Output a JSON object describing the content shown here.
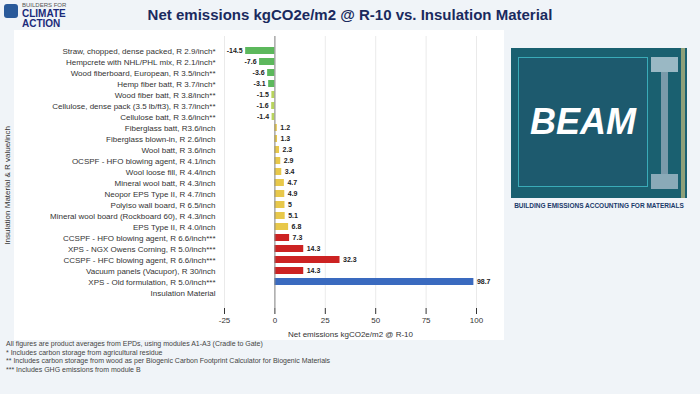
{
  "chart_data": {
    "type": "bar",
    "orientation": "horizontal",
    "title": "Net emissions kgCO2e/m2 @ R-10 vs. Insulation Material",
    "xlabel": "Net emissions kgCO2e/m2 @ R-10",
    "ylabel": "Insulation Material & R value/inch",
    "categories": [
      "Straw, chopped, dense packed, R 2.9/inch*",
      "Hempcrete with NHL/PHL mix, R 2.1/inch*",
      "Wood fiberboard, European, R 3.5/inch**",
      "Hemp fiber batt, R 3.7/inch*",
      "Wood fiber batt, R 3.8/inch**",
      "Cellulose, dense pack (3.5 lb/ft3), R 3.7/inch**",
      "Cellulose batt, R 3.6/inch**",
      "Fiberglass batt, R3.6/inch",
      "Fiberglass blown-in, R 2.6/inch",
      "Wool batt, R 3.6/inch",
      "OCSPF - HFO blowing agent, R 4.1/inch",
      "Wool loose fill, R 4.4/inch",
      "Mineral wool batt, R 4.3/inch",
      "Neopor EPS Type II, R 4.7/inch",
      "Polyiso wall board, R 6.5/inch",
      "Mineral wool board (Rockboard 60), R 4.3/inch",
      "EPS Type II, R 4.0/inch",
      "CCSPF - HFO blowing agent, R 6.6/inch***",
      "XPS - NGX Owens Corning, R 5.0/inch***",
      "CCSPF - HFC blowing agent, R 6.6/inch***",
      "Vacuum panels (Vacupor), R 30/inch",
      "XPS - Old formulation, R 5.0/inch***",
      "Insulation Material"
    ],
    "values": [
      -14.5,
      -7.6,
      -3.6,
      -3.1,
      -1.5,
      -1.6,
      -1.4,
      1.2,
      1.3,
      2.3,
      2.9,
      3.4,
      4.7,
      4.9,
      5.0,
      5.1,
      6.8,
      7.3,
      14.3,
      32.3,
      14.3,
      98.7,
      0
    ],
    "colors": [
      "#5cb85c",
      "#5cb85c",
      "#5cb85c",
      "#5cb85c",
      "#b8d45c",
      "#b8d45c",
      "#b8d45c",
      "#e8c84a",
      "#e8c84a",
      "#e8c84a",
      "#e8c84a",
      "#e8c84a",
      "#e8c84a",
      "#e8c84a",
      "#e8c84a",
      "#e8c84a",
      "#e8c84a",
      "#cc2222",
      "#cc2222",
      "#cc2222",
      "#cc2222",
      "#3a6abf",
      "#ffffff"
    ],
    "xlim": [
      -25,
      100
    ],
    "xticks": [
      -25,
      0,
      25,
      50,
      75,
      100
    ],
    "grid": true,
    "data_labels": true,
    "annotations": [
      "BEAM",
      "BUILDING EMISSIONS ACCOUNTING FOR MATERIALS",
      "BUILDERS FOR",
      "CLIMATE",
      "ACTION",
      "All figures are product averages from EPDs, using modules A1-A3 (Cradle to Gate)",
      "* Includes carbon storage from agricultural residue",
      "** Includes carbon storage from wood as per Biogenic Carbon Footprint Calculator for Biogenic Materials",
      "*** Includes GHG emissions from module B"
    ]
  }
}
